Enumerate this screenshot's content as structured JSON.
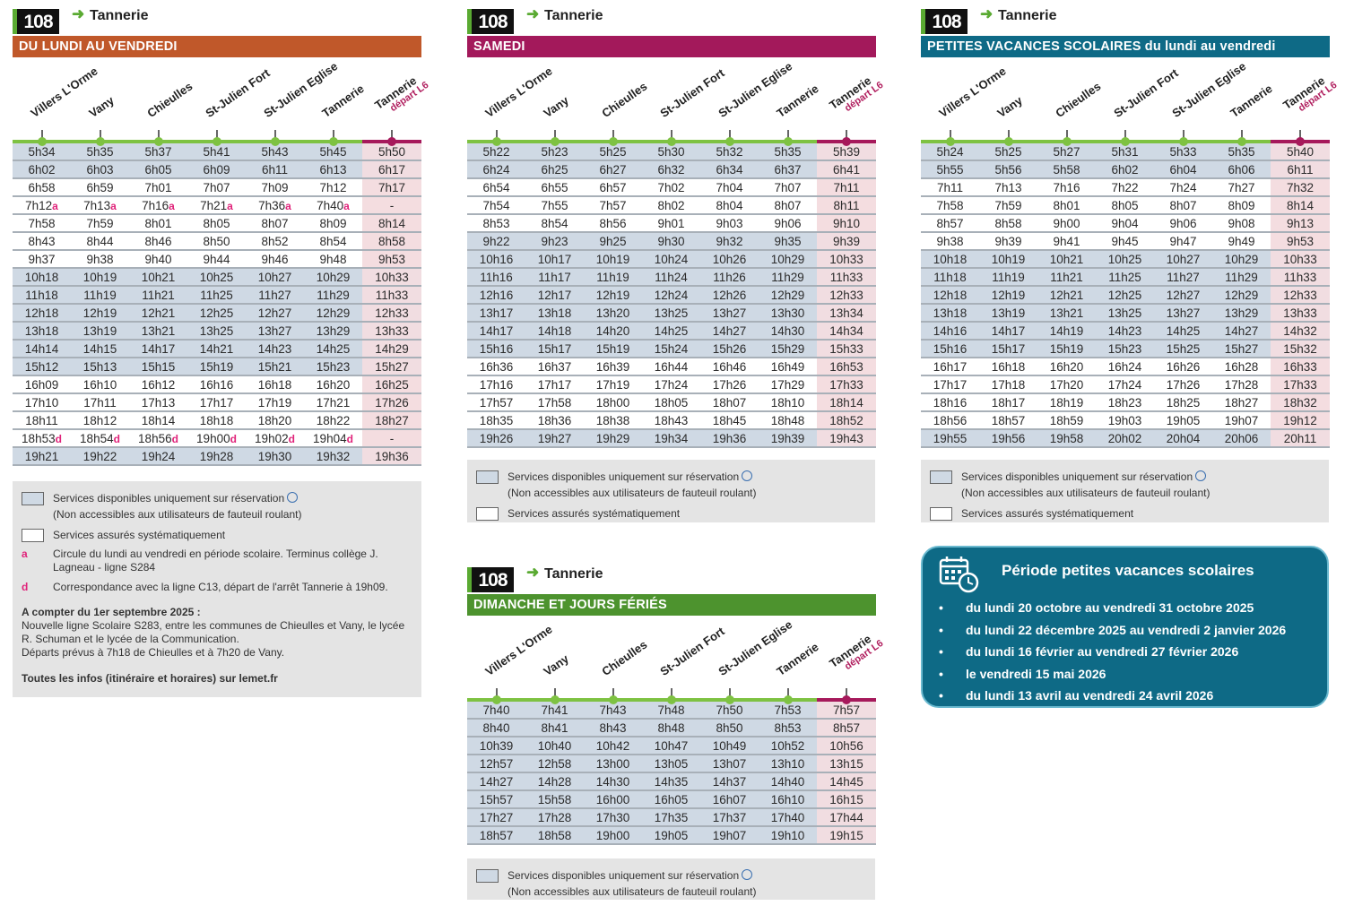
{
  "line_number": "108",
  "destination": "Tannerie",
  "stops": [
    "Villers L'Orme",
    "Vany",
    "Chieulles",
    "St-Julien Fort",
    "St-Julien Eglise",
    "Tannerie",
    "Tannerie"
  ],
  "last_stop_sub": "départ L6",
  "colors": {
    "weekday": "#c0582a",
    "saturday": "#a3195b",
    "holidays": "#0e6a86",
    "sunday": "#4d932e",
    "reservation": "#cfd9e4",
    "l6": "#a6195b"
  },
  "timetables": [
    {
      "id": "weekday",
      "title": "DU LUNDI AU VENDREDI",
      "reservation_rows": [
        0,
        1,
        7,
        8,
        9,
        10,
        11,
        12,
        17
      ],
      "rows": [
        [
          "5h34",
          "5h35",
          "5h37",
          "5h41",
          "5h43",
          "5h45",
          "5h50"
        ],
        [
          "6h02",
          "6h03",
          "6h05",
          "6h09",
          "6h11",
          "6h13",
          "6h17"
        ],
        [
          "6h58",
          "6h59",
          "7h01",
          "7h07",
          "7h09",
          "7h12",
          "7h17"
        ],
        [
          "7h12a",
          "7h13a",
          "7h16a",
          "7h21a",
          "7h36a",
          "7h40a",
          "-"
        ],
        [
          "7h58",
          "7h59",
          "8h01",
          "8h05",
          "8h07",
          "8h09",
          "8h14"
        ],
        [
          "8h43",
          "8h44",
          "8h46",
          "8h50",
          "8h52",
          "8h54",
          "8h58"
        ],
        [
          "9h37",
          "9h38",
          "9h40",
          "9h44",
          "9h46",
          "9h48",
          "9h53"
        ],
        [
          "10h18",
          "10h19",
          "10h21",
          "10h25",
          "10h27",
          "10h29",
          "10h33"
        ],
        [
          "11h18",
          "11h19",
          "11h21",
          "11h25",
          "11h27",
          "11h29",
          "11h33"
        ],
        [
          "12h18",
          "12h19",
          "12h21",
          "12h25",
          "12h27",
          "12h29",
          "12h33"
        ],
        [
          "13h18",
          "13h19",
          "13h21",
          "13h25",
          "13h27",
          "13h29",
          "13h33"
        ],
        [
          "14h14",
          "14h15",
          "14h17",
          "14h21",
          "14h23",
          "14h25",
          "14h29"
        ],
        [
          "15h12",
          "15h13",
          "15h15",
          "15h19",
          "15h21",
          "15h23",
          "15h27"
        ],
        [
          "16h09",
          "16h10",
          "16h12",
          "16h16",
          "16h18",
          "16h20",
          "16h25"
        ],
        [
          "17h10",
          "17h11",
          "17h13",
          "17h17",
          "17h19",
          "17h21",
          "17h26"
        ],
        [
          "18h11",
          "18h12",
          "18h14",
          "18h18",
          "18h20",
          "18h22",
          "18h27"
        ],
        [
          "18h53d",
          "18h54d",
          "18h56d",
          "19h00d",
          "19h02d",
          "19h04d",
          "-"
        ],
        [
          "19h21",
          "19h22",
          "19h24",
          "19h28",
          "19h30",
          "19h32",
          "19h36"
        ]
      ]
    },
    {
      "id": "saturday",
      "title": "SAMEDI",
      "reservation_rows": [
        0,
        1,
        5,
        6,
        7,
        8,
        9,
        10,
        11,
        16
      ],
      "rows": [
        [
          "5h22",
          "5h23",
          "5h25",
          "5h30",
          "5h32",
          "5h35",
          "5h39"
        ],
        [
          "6h24",
          "6h25",
          "6h27",
          "6h32",
          "6h34",
          "6h37",
          "6h41"
        ],
        [
          "6h54",
          "6h55",
          "6h57",
          "7h02",
          "7h04",
          "7h07",
          "7h11"
        ],
        [
          "7h54",
          "7h55",
          "7h57",
          "8h02",
          "8h04",
          "8h07",
          "8h11"
        ],
        [
          "8h53",
          "8h54",
          "8h56",
          "9h01",
          "9h03",
          "9h06",
          "9h10"
        ],
        [
          "9h22",
          "9h23",
          "9h25",
          "9h30",
          "9h32",
          "9h35",
          "9h39"
        ],
        [
          "10h16",
          "10h17",
          "10h19",
          "10h24",
          "10h26",
          "10h29",
          "10h33"
        ],
        [
          "11h16",
          "11h17",
          "11h19",
          "11h24",
          "11h26",
          "11h29",
          "11h33"
        ],
        [
          "12h16",
          "12h17",
          "12h19",
          "12h24",
          "12h26",
          "12h29",
          "12h33"
        ],
        [
          "13h17",
          "13h18",
          "13h20",
          "13h25",
          "13h27",
          "13h30",
          "13h34"
        ],
        [
          "14h17",
          "14h18",
          "14h20",
          "14h25",
          "14h27",
          "14h30",
          "14h34"
        ],
        [
          "15h16",
          "15h17",
          "15h19",
          "15h24",
          "15h26",
          "15h29",
          "15h33"
        ],
        [
          "16h36",
          "16h37",
          "16h39",
          "16h44",
          "16h46",
          "16h49",
          "16h53"
        ],
        [
          "17h16",
          "17h17",
          "17h19",
          "17h24",
          "17h26",
          "17h29",
          "17h33"
        ],
        [
          "17h57",
          "17h58",
          "18h00",
          "18h05",
          "18h07",
          "18h10",
          "18h14"
        ],
        [
          "18h35",
          "18h36",
          "18h38",
          "18h43",
          "18h45",
          "18h48",
          "18h52"
        ],
        [
          "19h26",
          "19h27",
          "19h29",
          "19h34",
          "19h36",
          "19h39",
          "19h43"
        ]
      ]
    },
    {
      "id": "holidays",
      "title": "PETITES VACANCES SCOLAIRES du lundi au vendredi",
      "reservation_rows": [
        0,
        1,
        6,
        7,
        8,
        9,
        10,
        11,
        16
      ],
      "rows": [
        [
          "5h24",
          "5h25",
          "5h27",
          "5h31",
          "5h33",
          "5h35",
          "5h40"
        ],
        [
          "5h55",
          "5h56",
          "5h58",
          "6h02",
          "6h04",
          "6h06",
          "6h11"
        ],
        [
          "7h11",
          "7h13",
          "7h16",
          "7h22",
          "7h24",
          "7h27",
          "7h32"
        ],
        [
          "7h58",
          "7h59",
          "8h01",
          "8h05",
          "8h07",
          "8h09",
          "8h14"
        ],
        [
          "8h57",
          "8h58",
          "9h00",
          "9h04",
          "9h06",
          "9h08",
          "9h13"
        ],
        [
          "9h38",
          "9h39",
          "9h41",
          "9h45",
          "9h47",
          "9h49",
          "9h53"
        ],
        [
          "10h18",
          "10h19",
          "10h21",
          "10h25",
          "10h27",
          "10h29",
          "10h33"
        ],
        [
          "11h18",
          "11h19",
          "11h21",
          "11h25",
          "11h27",
          "11h29",
          "11h33"
        ],
        [
          "12h18",
          "12h19",
          "12h21",
          "12h25",
          "12h27",
          "12h29",
          "12h33"
        ],
        [
          "13h18",
          "13h19",
          "13h21",
          "13h25",
          "13h27",
          "13h29",
          "13h33"
        ],
        [
          "14h16",
          "14h17",
          "14h19",
          "14h23",
          "14h25",
          "14h27",
          "14h32"
        ],
        [
          "15h16",
          "15h17",
          "15h19",
          "15h23",
          "15h25",
          "15h27",
          "15h32"
        ],
        [
          "16h17",
          "16h18",
          "16h20",
          "16h24",
          "16h26",
          "16h28",
          "16h33"
        ],
        [
          "17h17",
          "17h18",
          "17h20",
          "17h24",
          "17h26",
          "17h28",
          "17h33"
        ],
        [
          "18h16",
          "18h17",
          "18h19",
          "18h23",
          "18h25",
          "18h27",
          "18h32"
        ],
        [
          "18h56",
          "18h57",
          "18h59",
          "19h03",
          "19h05",
          "19h07",
          "19h12"
        ],
        [
          "19h55",
          "19h56",
          "19h58",
          "20h02",
          "20h04",
          "20h06",
          "20h11"
        ]
      ]
    },
    {
      "id": "sunday",
      "title": "DIMANCHE ET JOURS FÉRIÉS",
      "reservation_rows": [
        0,
        1,
        2,
        3,
        4,
        5,
        6,
        7
      ],
      "rows": [
        [
          "7h40",
          "7h41",
          "7h43",
          "7h48",
          "7h50",
          "7h53",
          "7h57"
        ],
        [
          "8h40",
          "8h41",
          "8h43",
          "8h48",
          "8h50",
          "8h53",
          "8h57"
        ],
        [
          "10h39",
          "10h40",
          "10h42",
          "10h47",
          "10h49",
          "10h52",
          "10h56"
        ],
        [
          "12h57",
          "12h58",
          "13h00",
          "13h05",
          "13h07",
          "13h10",
          "13h15"
        ],
        [
          "14h27",
          "14h28",
          "14h30",
          "14h35",
          "14h37",
          "14h40",
          "14h45"
        ],
        [
          "15h57",
          "15h58",
          "16h00",
          "16h05",
          "16h07",
          "16h10",
          "16h15"
        ],
        [
          "17h27",
          "17h28",
          "17h30",
          "17h35",
          "17h37",
          "17h40",
          "17h44"
        ],
        [
          "18h57",
          "18h58",
          "19h00",
          "19h05",
          "19h07",
          "19h10",
          "19h15"
        ]
      ]
    }
  ],
  "legend": {
    "reservation": "Services disponibles uniquement sur réservation",
    "reservation_sub": "(Non accessibles aux utilisateurs de fauteuil roulant)",
    "systematic": "Services assurés systématiquement",
    "note_a_mark": "a",
    "note_a": "Circule du lundi au vendredi en période scolaire. Terminus collège J. Lagneau - ligne S284",
    "note_d_mark": "d",
    "note_d": "Correspondance avec la ligne C13, départ de l'arrêt Tannerie à 19h09.",
    "info_title": "A compter du 1er septembre 2025 :",
    "info_body1": "Nouvelle ligne Scolaire S283, entre les communes de Chieulles et Vany, le lycée R. Schuman et le lycée de la Communication.",
    "info_body2": "Départs prévus à 7h18 de Chieulles et à 7h20 de Vany.",
    "info_footer": "Toutes les infos (itinéraire et horaires) sur lemet.fr"
  },
  "vacation_box": {
    "title": "Période petites vacances scolaires",
    "periods": [
      "du lundi 20 octobre au vendredi 31 octobre 2025",
      "du lundi 22 décembre 2025 au vendredi 2 janvier 2026",
      "du lundi 16 février au vendredi 27 février 2026",
      "le vendredi 15 mai 2026",
      "du lundi 13 avril au vendredi 24 avril 2026"
    ]
  }
}
